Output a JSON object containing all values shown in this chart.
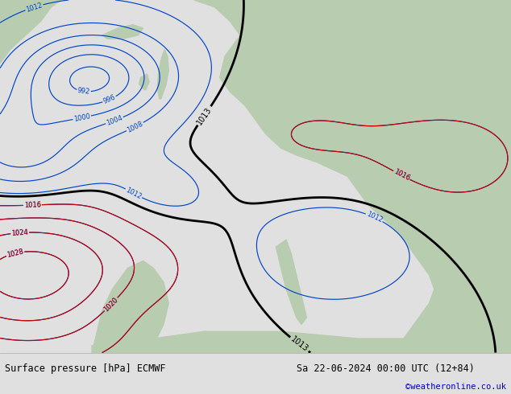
{
  "title_left": "Surface pressure [hPa] ECMWF",
  "title_right": "Sa 22-06-2024 00:00 UTC (12+84)",
  "credit": "©weatheronline.co.uk",
  "fig_width": 6.34,
  "fig_height": 4.9,
  "bottom_bar_color": "#f0f0f0",
  "label_fontsize": 8.5,
  "credit_color": "#0000cc",
  "map_bg_color": "#c8dce8",
  "land_color": "#b8ccb0",
  "blue_line_color": "#0044cc",
  "red_line_color": "#cc0000",
  "black_line_color": "#000000"
}
